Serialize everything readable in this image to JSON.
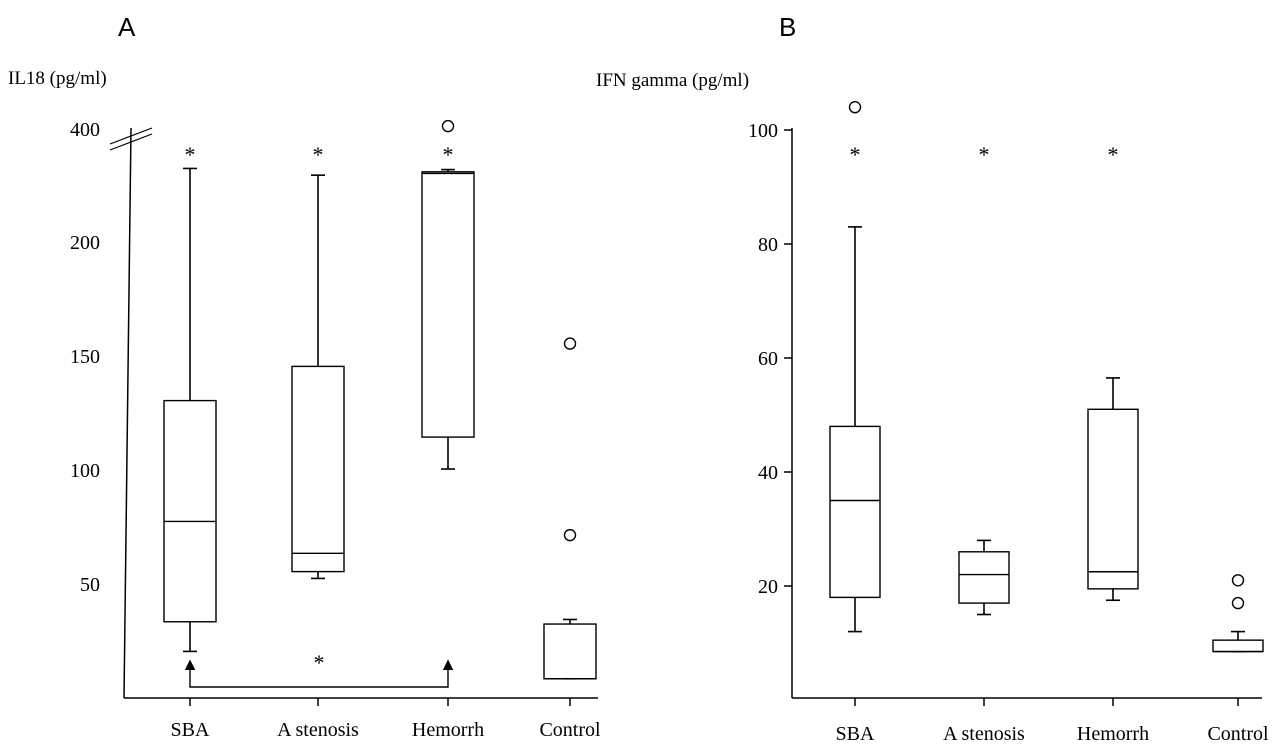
{
  "chart_data": [
    {
      "panel_label": "A",
      "type": "boxplot",
      "ylabel": "IL18 (pg/ml)",
      "ytick_labels": [
        "50",
        "100",
        "150",
        "200",
        "400"
      ],
      "axis_break": true,
      "categories": [
        "SBA",
        "A stenosis",
        "Hemorrh",
        "Control"
      ],
      "boxes": [
        {
          "name": "SBA",
          "whisker_low": 22,
          "q1": 35,
          "median": 79,
          "q3": 132,
          "whisker_high": 331
        },
        {
          "name": "A stenosis",
          "whisker_low": 54,
          "q1": 57,
          "median": 65,
          "q3": 147,
          "whisker_high": 319
        },
        {
          "name": "Hemorrh",
          "whisker_low": 102,
          "q1": 116,
          "median": 322,
          "q3": 325,
          "whisker_high": 329
        },
        {
          "name": "Control",
          "whisker_low": 10,
          "q1": 10,
          "median": 10,
          "q3": 34,
          "whisker_high": 36
        }
      ],
      "outliers": [
        {
          "category": "Hemorrh",
          "value": 407
        },
        {
          "category": "Control",
          "value": 157
        },
        {
          "category": "Control",
          "value": 73
        }
      ],
      "significance_marks": [
        {
          "category": "SBA",
          "symbol": "*"
        },
        {
          "category": "A stenosis",
          "symbol": "*"
        },
        {
          "category": "Hemorrh",
          "symbol": "*"
        }
      ],
      "comparison_bracket": {
        "from": "SBA",
        "to": "Hemorrh",
        "symbol": "*",
        "endpoint_marker": "▲"
      }
    },
    {
      "panel_label": "B",
      "type": "boxplot",
      "ylabel": "IFN gamma (pg/ml)",
      "ytick_labels": [
        "20",
        "40",
        "60",
        "80",
        "100"
      ],
      "ytick_values": [
        20,
        40,
        60,
        80,
        100
      ],
      "categories": [
        "SBA",
        "A stenosis",
        "Hemorrh",
        "Control"
      ],
      "boxes": [
        {
          "name": "SBA",
          "whisker_low": 12,
          "q1": 18,
          "median": 35,
          "q3": 48,
          "whisker_high": 83
        },
        {
          "name": "A stenosis",
          "whisker_low": 15,
          "q1": 17,
          "median": 22,
          "q3": 26,
          "whisker_high": 28
        },
        {
          "name": "Hemorrh",
          "whisker_low": 17.5,
          "q1": 19.5,
          "median": 22.5,
          "q3": 51,
          "whisker_high": 56.5
        },
        {
          "name": "Control",
          "whisker_low": 8.5,
          "q1": 8.5,
          "median": 8.5,
          "q3": 10.5,
          "whisker_high": 12
        }
      ],
      "outliers": [
        {
          "category": "SBA",
          "value": 104
        },
        {
          "category": "Control",
          "value": 21
        },
        {
          "category": "Control",
          "value": 17
        }
      ],
      "significance_marks": [
        {
          "category": "SBA",
          "symbol": "*"
        },
        {
          "category": "A stenosis",
          "symbol": "*"
        },
        {
          "category": "Hemorrh",
          "symbol": "*"
        }
      ]
    }
  ]
}
